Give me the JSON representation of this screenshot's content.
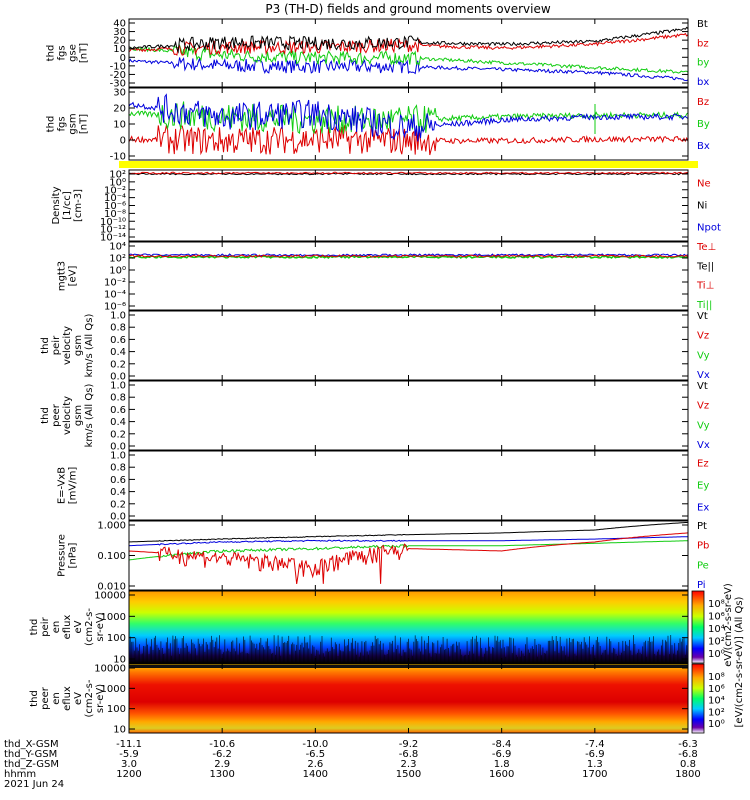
{
  "title": "P3 (TH-D) fields and ground moments overview",
  "date": "2021 Jun 24",
  "colors": {
    "black": "#000000",
    "red": "#dd0000",
    "green": "#11cc11",
    "blue": "#0000dd",
    "yellow": "#ffff00"
  },
  "panels": [
    {
      "id": "fgs-gse",
      "ylabel": [
        "thd",
        "fgs",
        "gse",
        "[nT]"
      ],
      "yticks": [
        "40",
        "30",
        "20",
        "10",
        "0",
        "-10",
        "-20",
        "-30"
      ],
      "legend": [
        {
          "t": "Bt",
          "c": "black"
        },
        {
          "t": "bz",
          "c": "red"
        },
        {
          "t": "by",
          "c": "green"
        },
        {
          "t": "bx",
          "c": "blue"
        }
      ]
    },
    {
      "id": "fgs-gsm",
      "ylabel": [
        "thd",
        "fgs",
        "gsm",
        "[nT]"
      ],
      "yticks": [
        "30",
        "20",
        "10",
        "0",
        "-10"
      ],
      "legend": [
        {
          "t": "Bz",
          "c": "red"
        },
        {
          "t": "By",
          "c": "green"
        },
        {
          "t": "Bx",
          "c": "blue"
        }
      ]
    },
    {
      "id": "density",
      "ylabel": [
        "Density",
        "[1/cc]",
        "[cm-3]"
      ],
      "yticks": [
        "10²",
        "10⁰",
        "10⁻²",
        "10⁻⁴",
        "10⁻⁶",
        "10⁻⁸",
        "10⁻¹⁰",
        "10⁻¹²",
        "10⁻¹⁴"
      ],
      "legend": [
        {
          "t": "Ne",
          "c": "red"
        },
        {
          "t": "Ni",
          "c": "black"
        },
        {
          "t": "Npot",
          "c": "blue"
        }
      ]
    },
    {
      "id": "temperature",
      "ylabel": [
        "mgtt3",
        "[eV]"
      ],
      "yticks": [
        "10⁴",
        "10²",
        "10⁰",
        "10⁻²",
        "10⁻⁴",
        "10⁻⁶"
      ],
      "legend": [
        {
          "t": "Te⊥",
          "c": "red"
        },
        {
          "t": "Te||",
          "c": "black"
        },
        {
          "t": "Ti⊥",
          "c": "red"
        },
        {
          "t": "Ti||",
          "c": "green"
        }
      ]
    },
    {
      "id": "peir-velocity",
      "ylabel": [
        "thd",
        "peir",
        "velocity",
        "gsm",
        "km/s (All Qs)"
      ],
      "yticks": [
        "1.0",
        "0.8",
        "0.6",
        "0.4",
        "0.2",
        "0.0"
      ],
      "legend": [
        {
          "t": "Vt",
          "c": "black"
        },
        {
          "t": "Vz",
          "c": "red"
        },
        {
          "t": "Vy",
          "c": "green"
        },
        {
          "t": "Vx",
          "c": "blue"
        }
      ]
    },
    {
      "id": "peer-velocity",
      "ylabel": [
        "thd",
        "peer",
        "velocity",
        "gsm",
        "km/s (All Qs)"
      ],
      "yticks": [
        "1.0",
        "0.8",
        "0.6",
        "0.4",
        "0.2",
        "0.0"
      ],
      "legend": [
        {
          "t": "Vt",
          "c": "black"
        },
        {
          "t": "Vz",
          "c": "red"
        },
        {
          "t": "Vy",
          "c": "green"
        },
        {
          "t": "Vx",
          "c": "blue"
        }
      ]
    },
    {
      "id": "efield",
      "ylabel": [
        "E=-VxB",
        "[mV/m]"
      ],
      "yticks": [
        "1.0",
        "0.8",
        "0.6",
        "0.4",
        "0.2",
        "0.0"
      ],
      "legend": [
        {
          "t": "Ez",
          "c": "red"
        },
        {
          "t": "Ey",
          "c": "green"
        },
        {
          "t": "Ex",
          "c": "blue"
        }
      ]
    },
    {
      "id": "pressure",
      "ylabel": [
        "Pressure",
        "[nPa]"
      ],
      "yticks": [
        "1.000",
        "0.100",
        "0.010"
      ],
      "legend": [
        {
          "t": "Pt",
          "c": "black"
        },
        {
          "t": "Pb",
          "c": "red"
        },
        {
          "t": "Pe",
          "c": "green"
        },
        {
          "t": "Pi",
          "c": "blue"
        }
      ]
    },
    {
      "id": "peir-eflux",
      "ylabel": [
        "thd",
        "peir",
        "en",
        "eflux",
        "eV",
        "(cm2-s-",
        "sr-eV)"
      ],
      "yticks": [
        "10000",
        "1000",
        "100",
        "10"
      ]
    },
    {
      "id": "peer-eflux",
      "ylabel": [
        "thd",
        "peer",
        "en",
        "eflux",
        "eV",
        "(cm2-s-",
        "sr-eV)"
      ],
      "yticks": [
        "10000",
        "1000",
        "100",
        "10"
      ]
    }
  ],
  "colorbars": [
    {
      "ticks": [
        "10⁸",
        "10⁶",
        "10⁴",
        "10²",
        "10⁰"
      ]
    },
    {
      "ticks": [
        "10⁸",
        "10⁶",
        "10⁴",
        "10²",
        "10⁰"
      ]
    }
  ],
  "colorbar_label": "[eV/(cm2-s-sr-eV)] (All Qs)",
  "colorbar_label2": "eV/(cm2-s-sr-eV)",
  "xaxis": {
    "rows": [
      {
        "label": "thd_X-GSM",
        "values": [
          "-11.1",
          "-10.6",
          "-10.0",
          "-9.2",
          "-8.4",
          "-7.4",
          "-6.3"
        ]
      },
      {
        "label": "thd_Y-GSM",
        "values": [
          "-5.9",
          "-6.2",
          "-6.5",
          "-6.8",
          "-6.9",
          "-6.9",
          "-6.8"
        ]
      },
      {
        "label": "thd_Z-GSM",
        "values": [
          "3.0",
          "2.9",
          "2.6",
          "2.3",
          "1.8",
          "1.3",
          "0.8"
        ]
      },
      {
        "label": "hhmm",
        "values": [
          "1200",
          "1300",
          "1400",
          "1500",
          "1600",
          "1700",
          "1800"
        ]
      }
    ]
  },
  "chart_data": [
    {
      "type": "line",
      "title": "P3 (TH-D) fields and ground moments overview",
      "ylabel": "thd fgs gse [nT]",
      "x": [
        "1200",
        "1300",
        "1400",
        "1500",
        "1600",
        "1700",
        "1800"
      ],
      "ylim": [
        -30,
        40
      ],
      "series": [
        {
          "name": "Bt",
          "values": [
            10,
            16,
            15,
            16,
            14,
            17,
            30
          ]
        },
        {
          "name": "bz",
          "values": [
            8,
            11,
            11,
            13,
            10,
            14,
            24
          ]
        },
        {
          "name": "by",
          "values": [
            10,
            3,
            0,
            0,
            -5,
            -10,
            -15
          ]
        },
        {
          "name": "bx",
          "values": [
            -3,
            -8,
            -9,
            -9,
            -12,
            -15,
            -22
          ]
        }
      ]
    },
    {
      "type": "line",
      "ylabel": "thd fgs gsm [nT]",
      "x": [
        "1200",
        "1300",
        "1400",
        "1500",
        "1600",
        "1700",
        "1800"
      ],
      "ylim": [
        -15,
        30
      ],
      "series": [
        {
          "name": "Bz",
          "values": [
            -2,
            -3,
            -2,
            -3,
            -3,
            -2,
            -2
          ]
        },
        {
          "name": "By",
          "values": [
            14,
            12,
            10,
            10,
            12,
            13,
            13
          ]
        },
        {
          "name": "Bx",
          "values": [
            20,
            12,
            14,
            5,
            10,
            12,
            12
          ]
        }
      ]
    },
    {
      "type": "line",
      "ylabel": "Density [1/cc] [cm-3]",
      "yscale": "log",
      "series": [
        {
          "name": "Ne",
          "values": [
            2,
            2,
            2,
            2,
            2,
            2,
            2
          ]
        },
        {
          "name": "Ni",
          "values": [
            1.5,
            1.5,
            1.5,
            1.5,
            1.5,
            1.5,
            1.5
          ]
        }
      ]
    },
    {
      "type": "line",
      "ylabel": "mgtt3 [eV]",
      "yscale": "log",
      "series": [
        {
          "name": "Te⊥",
          "values": [
            400,
            400,
            400,
            400,
            400,
            400,
            400
          ]
        },
        {
          "name": "Ti||",
          "values": [
            300,
            300,
            300,
            300,
            300,
            300,
            300
          ]
        }
      ]
    },
    {
      "type": "line",
      "ylabel": "Pressure [nPa]",
      "yscale": "log",
      "ylim": [
        0.005,
        1.0
      ],
      "series": [
        {
          "name": "Pt",
          "values": [
            0.2,
            0.25,
            0.3,
            0.35,
            0.4,
            0.5,
            0.9
          ]
        },
        {
          "name": "Pb",
          "values": [
            0.1,
            0.06,
            0.03,
            0.12,
            0.1,
            0.2,
            0.4
          ]
        },
        {
          "name": "Pe",
          "values": [
            0.05,
            0.1,
            0.12,
            0.15,
            0.15,
            0.18,
            0.22
          ]
        },
        {
          "name": "Pi",
          "values": [
            0.15,
            0.2,
            0.22,
            0.22,
            0.22,
            0.25,
            0.3
          ]
        }
      ]
    },
    {
      "type": "heatmap",
      "ylabel": "thd peir en eflux eV",
      "yscale": "log",
      "ylim": [
        5,
        20000
      ]
    },
    {
      "type": "heatmap",
      "ylabel": "thd peer en eflux eV",
      "yscale": "log",
      "ylim": [
        5,
        20000
      ]
    }
  ]
}
